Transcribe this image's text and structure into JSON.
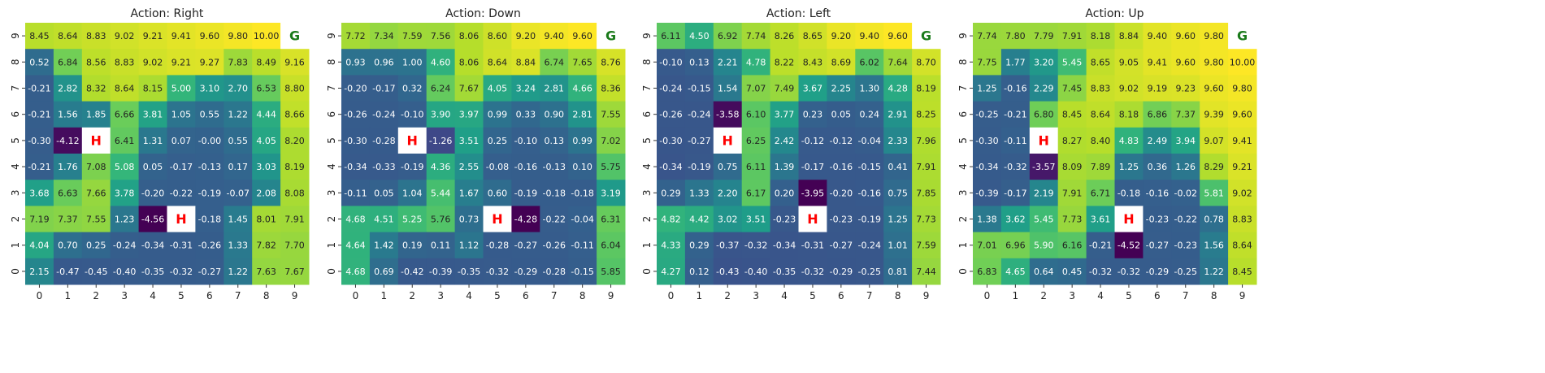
{
  "chart_data": [
    {
      "type": "heatmap",
      "title": "Action: Right",
      "x_ticks": [
        "0",
        "1",
        "2",
        "3",
        "4",
        "5",
        "6",
        "7",
        "8",
        "9"
      ],
      "y_ticks": [
        "9",
        "8",
        "7",
        "6",
        "5",
        "4",
        "3",
        "2",
        "1",
        "0"
      ],
      "colormap": "viridis",
      "colorscale_range": [
        -4.56,
        10.0
      ],
      "rows": [
        [
          "8.45",
          "8.64",
          "8.83",
          "9.02",
          "9.21",
          "9.41",
          "9.60",
          "9.80",
          "10.00",
          "G"
        ],
        [
          "0.52",
          "6.84",
          "8.56",
          "8.83",
          "9.02",
          "9.21",
          "9.27",
          "7.83",
          "8.49",
          "9.16"
        ],
        [
          "-0.21",
          "2.82",
          "8.32",
          "8.64",
          "8.15",
          "5.00",
          "3.10",
          "2.70",
          "6.53",
          "8.80"
        ],
        [
          "-0.21",
          "1.56",
          "1.85",
          "6.66",
          "3.81",
          "1.05",
          "0.55",
          "1.22",
          "4.44",
          "8.66"
        ],
        [
          "-0.30",
          "-4.12",
          "H",
          "6.41",
          "1.31",
          "0.07",
          "-0.00",
          "0.55",
          "4.05",
          "8.20"
        ],
        [
          "-0.21",
          "1.76",
          "7.08",
          "5.08",
          "0.05",
          "-0.17",
          "-0.13",
          "0.17",
          "3.03",
          "8.19"
        ],
        [
          "3.68",
          "6.63",
          "7.66",
          "3.78",
          "-0.20",
          "-0.22",
          "-0.19",
          "-0.07",
          "2.08",
          "8.08"
        ],
        [
          "7.19",
          "7.37",
          "7.55",
          "1.23",
          "-4.56",
          "H",
          "-0.18",
          "1.45",
          "8.01",
          "7.91"
        ],
        [
          "4.04",
          "0.70",
          "0.25",
          "-0.24",
          "-0.34",
          "-0.31",
          "-0.26",
          "1.33",
          "7.82",
          "7.70"
        ],
        [
          "2.15",
          "-0.47",
          "-0.45",
          "-0.40",
          "-0.35",
          "-0.32",
          "-0.27",
          "1.22",
          "7.63",
          "7.67"
        ]
      ]
    },
    {
      "type": "heatmap",
      "title": "Action: Down",
      "x_ticks": [
        "0",
        "1",
        "2",
        "3",
        "4",
        "5",
        "6",
        "7",
        "8",
        "9"
      ],
      "y_ticks": [
        "9",
        "8",
        "7",
        "6",
        "5",
        "4",
        "3",
        "2",
        "1",
        "0"
      ],
      "colormap": "viridis",
      "colorscale_range": [
        -4.28,
        9.6
      ],
      "rows": [
        [
          "7.72",
          "7.34",
          "7.59",
          "7.56",
          "8.06",
          "8.60",
          "9.20",
          "9.40",
          "9.60",
          "G"
        ],
        [
          "0.93",
          "0.96",
          "1.00",
          "4.60",
          "8.06",
          "8.64",
          "8.84",
          "6.74",
          "7.65",
          "8.76"
        ],
        [
          "-0.20",
          "-0.17",
          "0.32",
          "6.24",
          "7.67",
          "4.05",
          "3.24",
          "2.81",
          "4.66",
          "8.36"
        ],
        [
          "-0.26",
          "-0.24",
          "-0.10",
          "3.90",
          "3.97",
          "0.99",
          "0.33",
          "0.90",
          "2.81",
          "7.55"
        ],
        [
          "-0.30",
          "-0.28",
          "H",
          "-1.26",
          "3.51",
          "0.25",
          "-0.10",
          "0.13",
          "0.99",
          "7.02"
        ],
        [
          "-0.34",
          "-0.33",
          "-0.19",
          "4.36",
          "2.55",
          "-0.08",
          "-0.16",
          "-0.13",
          "0.10",
          "5.75"
        ],
        [
          "-0.11",
          "0.05",
          "1.04",
          "5.44",
          "1.67",
          "0.60",
          "-0.19",
          "-0.18",
          "-0.18",
          "3.19"
        ],
        [
          "4.68",
          "4.51",
          "5.25",
          "5.76",
          "0.73",
          "H",
          "-4.28",
          "-0.22",
          "-0.04",
          "6.31"
        ],
        [
          "4.64",
          "1.42",
          "0.19",
          "0.11",
          "1.12",
          "-0.28",
          "-0.27",
          "-0.26",
          "-0.11",
          "6.04"
        ],
        [
          "4.68",
          "0.69",
          "-0.42",
          "-0.39",
          "-0.35",
          "-0.32",
          "-0.29",
          "-0.28",
          "-0.15",
          "5.85"
        ]
      ]
    },
    {
      "type": "heatmap",
      "title": "Action: Left",
      "x_ticks": [
        "0",
        "1",
        "2",
        "3",
        "4",
        "5",
        "6",
        "7",
        "8",
        "9"
      ],
      "y_ticks": [
        "9",
        "8",
        "7",
        "6",
        "5",
        "4",
        "3",
        "2",
        "1",
        "0"
      ],
      "colormap": "viridis",
      "colorscale_range": [
        -3.95,
        9.6
      ],
      "rows": [
        [
          "6.11",
          "4.50",
          "6.92",
          "7.74",
          "8.26",
          "8.65",
          "9.20",
          "9.40",
          "9.60",
          "G"
        ],
        [
          "-0.10",
          "0.13",
          "2.21",
          "4.78",
          "8.22",
          "8.43",
          "8.69",
          "6.02",
          "7.64",
          "8.70"
        ],
        [
          "-0.24",
          "-0.15",
          "1.54",
          "7.07",
          "7.49",
          "3.67",
          "2.25",
          "1.30",
          "4.28",
          "8.19"
        ],
        [
          "-0.26",
          "-0.24",
          "-3.58",
          "6.10",
          "3.77",
          "0.23",
          "0.05",
          "0.24",
          "2.91",
          "8.25"
        ],
        [
          "-0.30",
          "-0.27",
          "H",
          "6.25",
          "2.42",
          "-0.12",
          "-0.12",
          "-0.04",
          "2.33",
          "7.96"
        ],
        [
          "-0.34",
          "-0.19",
          "0.75",
          "6.11",
          "1.39",
          "-0.17",
          "-0.16",
          "-0.15",
          "0.41",
          "7.91"
        ],
        [
          "0.29",
          "1.33",
          "2.20",
          "6.17",
          "0.20",
          "-3.95",
          "-0.20",
          "-0.16",
          "0.75",
          "7.85"
        ],
        [
          "4.82",
          "4.42",
          "3.02",
          "3.51",
          "-0.23",
          "H",
          "-0.23",
          "-0.19",
          "1.25",
          "7.73"
        ],
        [
          "4.33",
          "0.29",
          "-0.37",
          "-0.32",
          "-0.34",
          "-0.31",
          "-0.27",
          "-0.24",
          "1.01",
          "7.59"
        ],
        [
          "4.27",
          "0.12",
          "-0.43",
          "-0.40",
          "-0.35",
          "-0.32",
          "-0.29",
          "-0.25",
          "0.81",
          "7.44"
        ]
      ]
    },
    {
      "type": "heatmap",
      "title": "Action: Up",
      "x_ticks": [
        "0",
        "1",
        "2",
        "3",
        "4",
        "5",
        "6",
        "7",
        "8",
        "9"
      ],
      "y_ticks": [
        "9",
        "8",
        "7",
        "6",
        "5",
        "4",
        "3",
        "2",
        "1",
        "0"
      ],
      "colormap": "viridis",
      "colorscale_range": [
        -4.52,
        10.0
      ],
      "rows": [
        [
          "7.74",
          "7.80",
          "7.79",
          "7.91",
          "8.18",
          "8.84",
          "9.40",
          "9.60",
          "9.80",
          "G"
        ],
        [
          "7.75",
          "1.77",
          "3.20",
          "5.45",
          "8.65",
          "9.05",
          "9.41",
          "9.60",
          "9.80",
          "10.00"
        ],
        [
          "1.25",
          "-0.16",
          "2.29",
          "7.45",
          "8.83",
          "9.02",
          "9.19",
          "9.23",
          "9.60",
          "9.80"
        ],
        [
          "-0.25",
          "-0.21",
          "6.80",
          "8.45",
          "8.64",
          "8.18",
          "6.86",
          "7.37",
          "9.39",
          "9.60"
        ],
        [
          "-0.30",
          "-0.11",
          "H",
          "8.27",
          "8.40",
          "4.83",
          "2.49",
          "3.94",
          "9.07",
          "9.41"
        ],
        [
          "-0.34",
          "-0.32",
          "-3.57",
          "8.09",
          "7.89",
          "1.25",
          "0.36",
          "1.26",
          "8.29",
          "9.21"
        ],
        [
          "-0.39",
          "-0.17",
          "2.19",
          "7.91",
          "6.71",
          "-0.18",
          "-0.16",
          "-0.02",
          "5.81",
          "9.02"
        ],
        [
          "1.38",
          "3.62",
          "5.45",
          "7.73",
          "3.61",
          "H",
          "-0.23",
          "-0.22",
          "0.78",
          "8.83"
        ],
        [
          "7.01",
          "6.96",
          "5.90",
          "6.16",
          "-0.21",
          "-4.52",
          "-0.27",
          "-0.23",
          "1.56",
          "8.64"
        ],
        [
          "6.83",
          "4.65",
          "0.64",
          "0.45",
          "-0.32",
          "-0.32",
          "-0.29",
          "-0.25",
          "1.22",
          "8.45"
        ]
      ]
    }
  ],
  "special_cells": {
    "hole_label": "H",
    "goal_label": "G",
    "hole_color": "#ff0000",
    "goal_color": "#1a7a1a"
  }
}
